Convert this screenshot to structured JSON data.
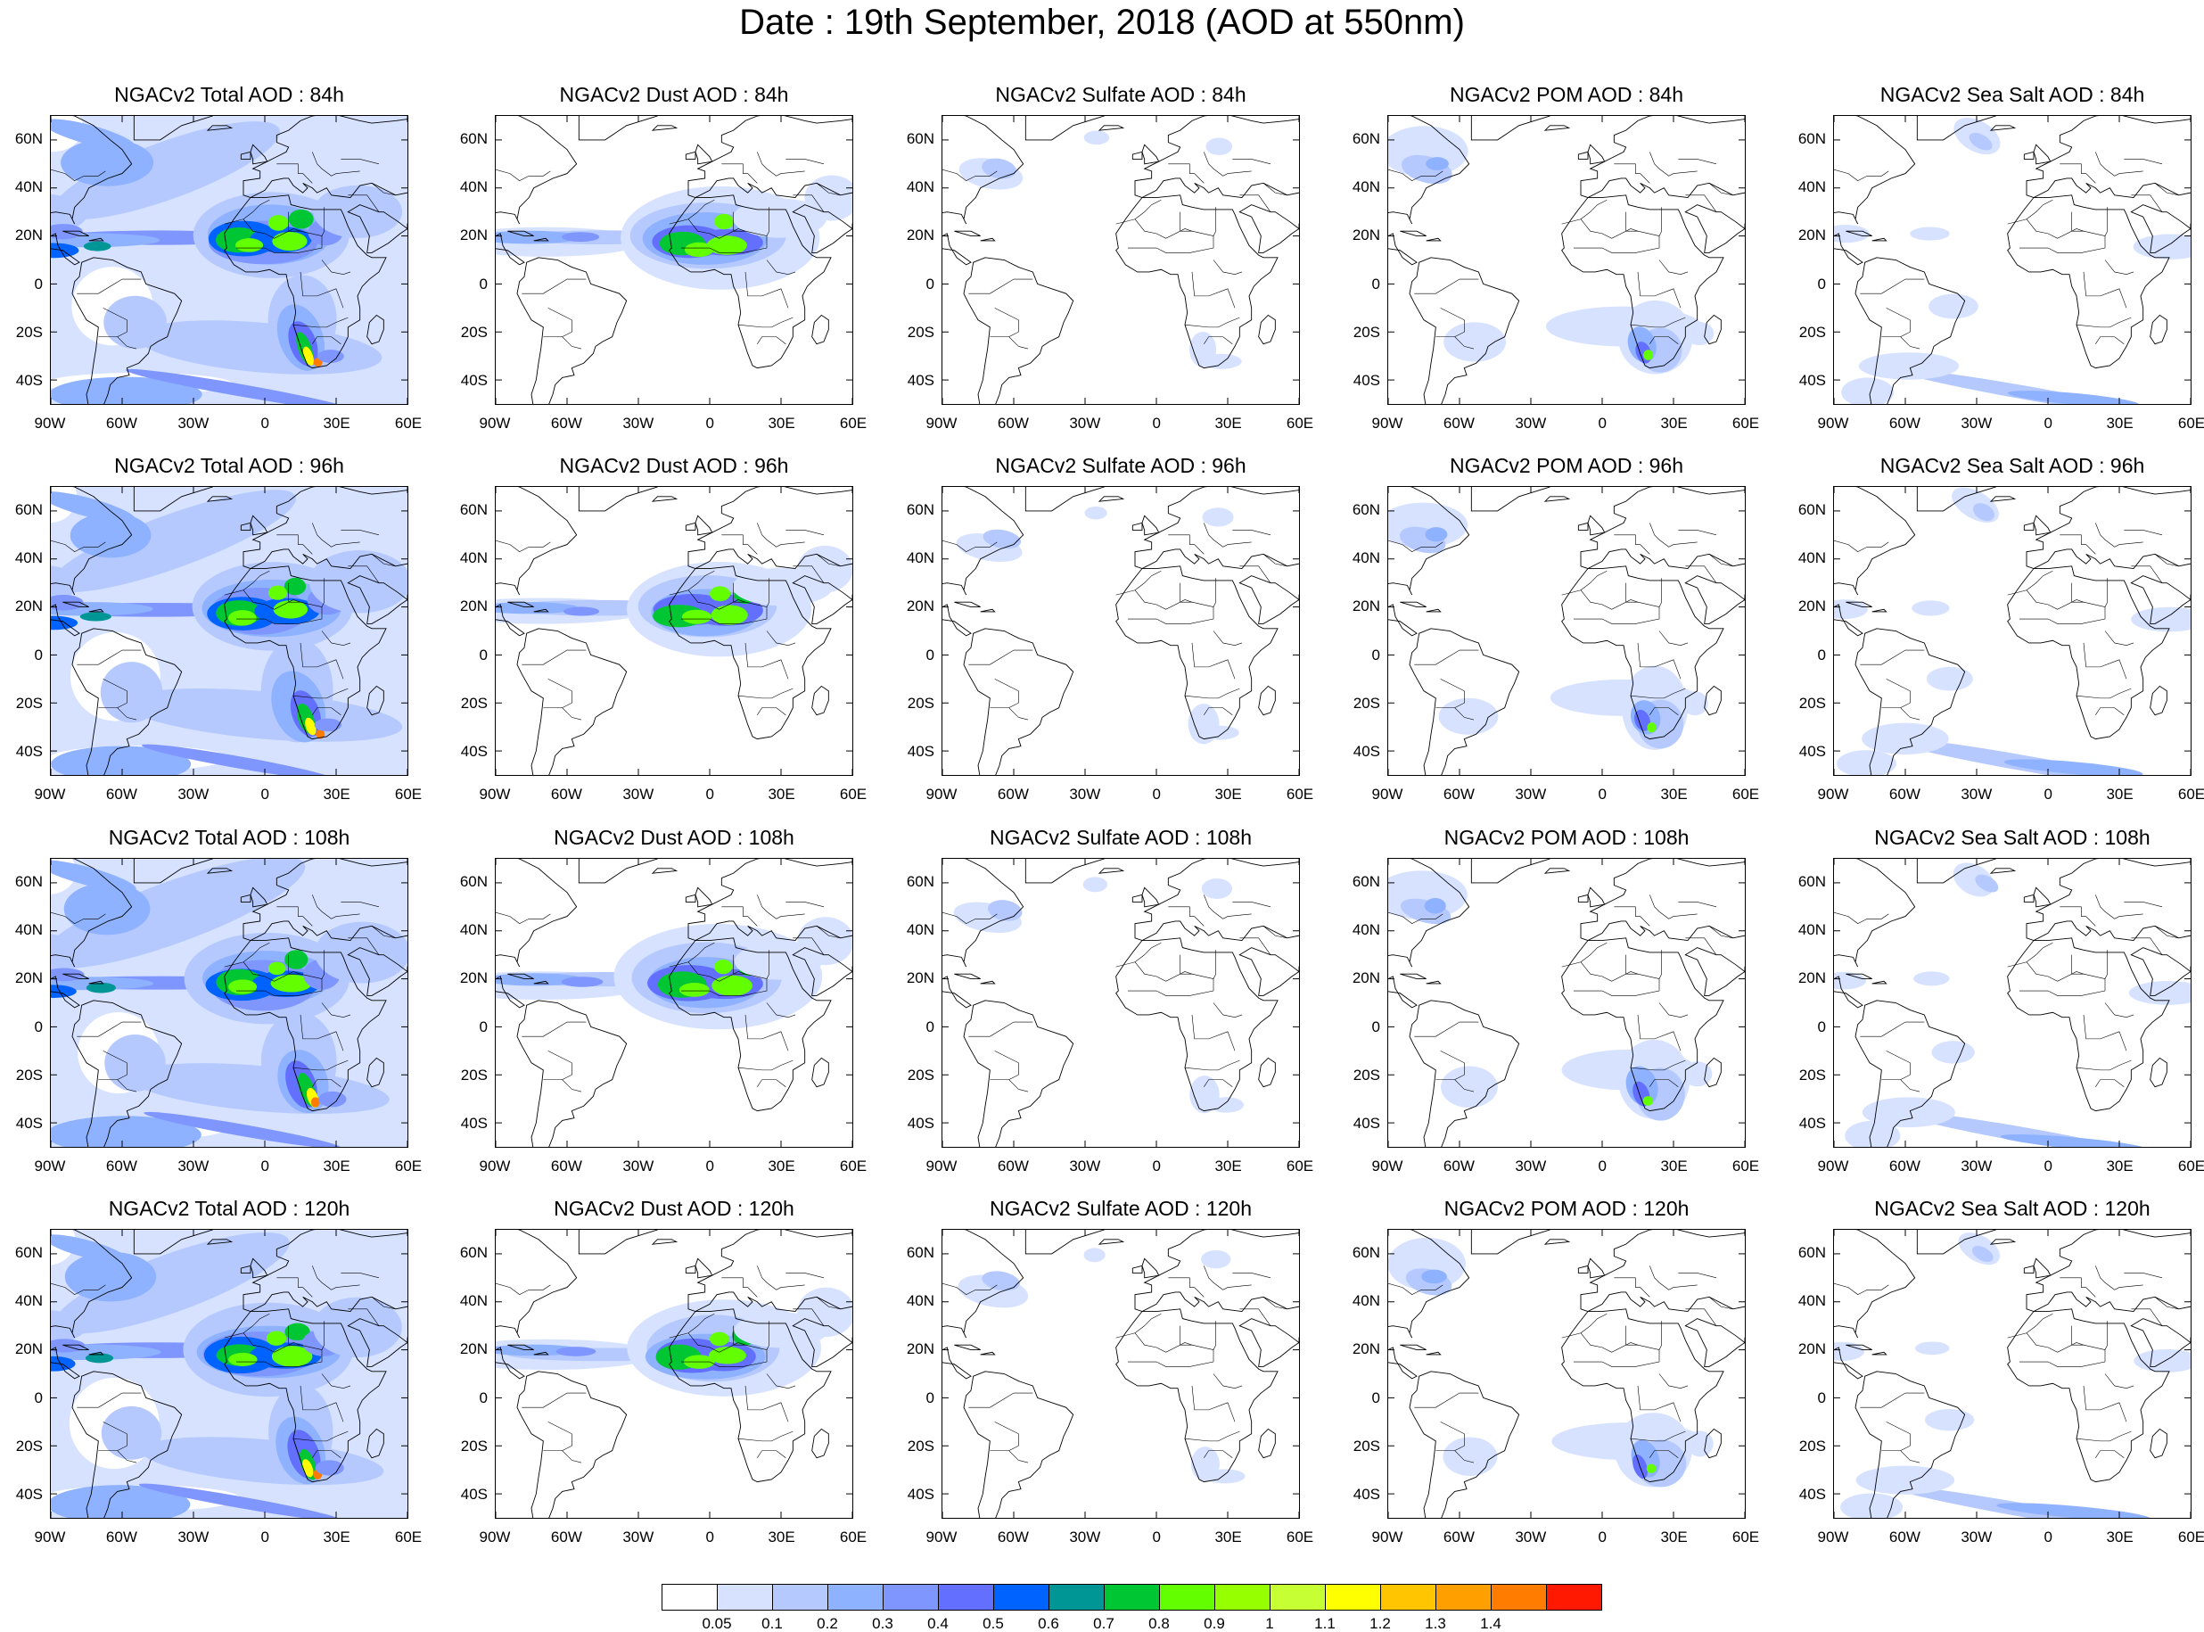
{
  "title": "Date : 19th September, 2018 (AOD at 550nm)",
  "lat_labels": [
    "60N",
    "40N",
    "20N",
    "0",
    "20S",
    "40S"
  ],
  "lon_labels": [
    "90W",
    "60W",
    "30W",
    "0",
    "30E",
    "60E"
  ],
  "rows": [
    {
      "panels": [
        {
          "title": "NGACv2 Total AOD : 84h",
          "field": "total"
        },
        {
          "title": "NGACv2 Dust AOD : 84h",
          "field": "dust"
        },
        {
          "title": "NGACv2 Sulfate AOD : 84h",
          "field": "sulfate"
        },
        {
          "title": "NGACv2 POM AOD : 84h",
          "field": "pom"
        },
        {
          "title": "NGACv2 Sea Salt AOD : 84h",
          "field": "seasalt"
        }
      ]
    },
    {
      "panels": [
        {
          "title": "NGACv2 Total AOD : 96h",
          "field": "total"
        },
        {
          "title": "NGACv2 Dust AOD : 96h",
          "field": "dust"
        },
        {
          "title": "NGACv2 Sulfate AOD : 96h",
          "field": "sulfate"
        },
        {
          "title": "NGACv2 POM AOD : 96h",
          "field": "pom"
        },
        {
          "title": "NGACv2 Sea Salt AOD : 96h",
          "field": "seasalt"
        }
      ]
    },
    {
      "panels": [
        {
          "title": "NGACv2 Total AOD : 108h",
          "field": "total"
        },
        {
          "title": "NGACv2 Dust AOD : 108h",
          "field": "dust"
        },
        {
          "title": "NGACv2 Sulfate AOD : 108h",
          "field": "sulfate"
        },
        {
          "title": "NGACv2 POM AOD : 108h",
          "field": "pom"
        },
        {
          "title": "NGACv2 Sea Salt AOD : 108h",
          "field": "seasalt"
        }
      ]
    },
    {
      "panels": [
        {
          "title": "NGACv2 Total AOD : 120h",
          "field": "total"
        },
        {
          "title": "NGACv2 Dust AOD : 120h",
          "field": "dust"
        },
        {
          "title": "NGACv2 Sulfate AOD : 120h",
          "field": "sulfate"
        },
        {
          "title": "NGACv2 POM AOD : 120h",
          "field": "pom"
        },
        {
          "title": "NGACv2 Sea Salt  AOD : 120h",
          "field": "seasalt"
        }
      ]
    }
  ],
  "colorbar": {
    "colors": [
      "#ffffff",
      "#d6e2ff",
      "#b5c9ff",
      "#8eb2ff",
      "#7f96ff",
      "#6370ff",
      "#0063ff",
      "#009696",
      "#00c633",
      "#63ff00",
      "#96ff00",
      "#c6ff33",
      "#ffff00",
      "#ffc600",
      "#ffa000",
      "#ff7c00",
      "#ff1900"
    ],
    "labels": [
      "0.05",
      "0.1",
      "0.2",
      "0.3",
      "0.4",
      "0.5",
      "0.6",
      "0.7",
      "0.8",
      "0.9",
      "1",
      "1.1",
      "1.2",
      "1.3",
      "1.4"
    ]
  }
}
